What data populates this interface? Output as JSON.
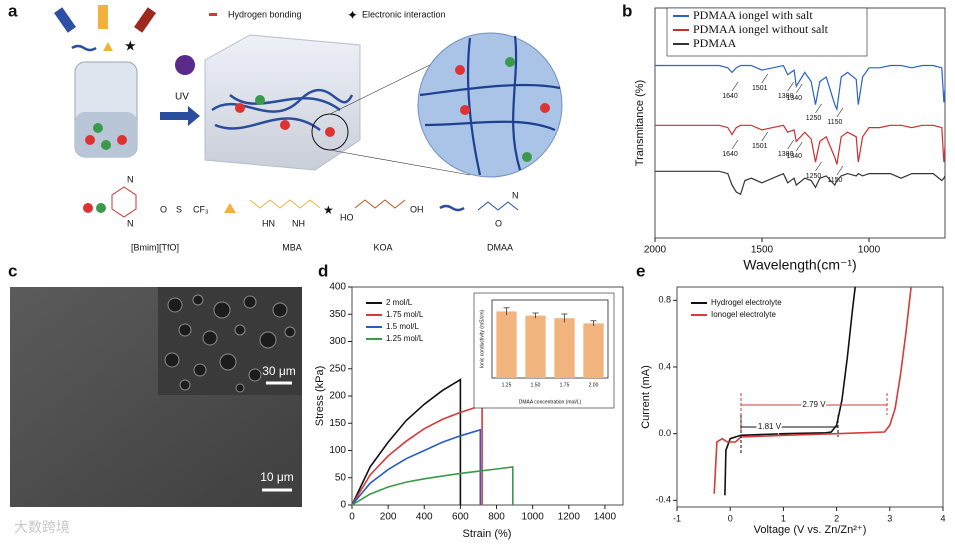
{
  "panel_labels": [
    "a",
    "b",
    "c",
    "d",
    "e"
  ],
  "diagram": {
    "legend": [
      "Hydrogen bonding",
      "Electronic interaction"
    ],
    "uv": "UV",
    "molecules": [
      "[Bmim][TfO]",
      "MBA",
      "KOA",
      "DMAA"
    ],
    "structure_labels": [
      "N",
      "N",
      "CF₃",
      "S",
      "O",
      "HN",
      "NH",
      "HO",
      "OH",
      "O",
      "N"
    ]
  },
  "sem": {
    "scale_bars": [
      "10 μm",
      "30 μm"
    ]
  },
  "watermark": "大数跨境",
  "chart_data": [
    {
      "type": "line",
      "xlabel": "Wavelength(cm⁻¹)",
      "ylabel": "Transmitance (%)",
      "xlim": [
        2000,
        645
      ],
      "ylim": [
        0,
        10
      ],
      "xticks": [
        2000,
        1500,
        1000
      ],
      "legend": "upper left",
      "x": [
        2000,
        1900,
        1800,
        1700,
        1660,
        1640,
        1620,
        1600,
        1580,
        1550,
        1501,
        1450,
        1400,
        1380,
        1350,
        1340,
        1300,
        1270,
        1250,
        1230,
        1200,
        1160,
        1150,
        1130,
        1100,
        1060,
        1050,
        1030,
        1000,
        950,
        900,
        850,
        800,
        750,
        700,
        660,
        650,
        645
      ],
      "series": [
        {
          "name": "PDMAA iongel with salt",
          "color": "#2a62cf",
          "values": [
            7.5,
            7.5,
            7.5,
            7.5,
            7.4,
            7.2,
            7.4,
            7.5,
            7.5,
            7.5,
            7.3,
            7.4,
            7.5,
            7.1,
            7.3,
            6.6,
            7.2,
            6.8,
            5.8,
            6.8,
            7.0,
            5.8,
            5.6,
            7.0,
            7.2,
            6.9,
            5.8,
            7.0,
            7.4,
            7.4,
            7.5,
            7.5,
            7.4,
            7.5,
            7.5,
            7.4,
            5.9,
            6.5
          ],
          "peak_labels": [
            1640,
            1501,
            1380,
            1340,
            1250,
            1150
          ]
        },
        {
          "name": "PDMAA iongel without salt",
          "color": "#d02d2d",
          "values": [
            4.9,
            4.9,
            4.9,
            4.9,
            4.8,
            4.5,
            4.8,
            4.9,
            4.9,
            4.9,
            4.7,
            4.8,
            4.9,
            4.6,
            4.7,
            4.2,
            4.6,
            4.3,
            3.3,
            4.2,
            4.4,
            3.5,
            3.2,
            4.4,
            4.6,
            4.4,
            3.3,
            4.4,
            4.8,
            4.8,
            4.9,
            4.9,
            4.8,
            4.9,
            4.9,
            4.8,
            3.3,
            4.0
          ],
          "peak_labels": [
            1640,
            1501,
            1380,
            1340,
            1250,
            1150
          ]
        },
        {
          "name": "PDMAA",
          "color": "#333333",
          "values": [
            2.9,
            2.9,
            2.9,
            2.9,
            2.8,
            2.3,
            2.0,
            1.9,
            2.5,
            2.6,
            2.4,
            2.6,
            2.8,
            2.4,
            2.6,
            2.3,
            2.6,
            2.5,
            2.2,
            2.6,
            2.7,
            2.3,
            2.5,
            2.7,
            2.8,
            2.7,
            2.8,
            2.7,
            2.8,
            2.8,
            2.8,
            2.6,
            2.8,
            2.8,
            2.8,
            2.5,
            2.6,
            2.7
          ]
        }
      ]
    },
    {
      "type": "line",
      "xlabel": "Strain (%)",
      "ylabel": "Stress (kPa)",
      "xlim": [
        0,
        1500
      ],
      "ylim": [
        0,
        400
      ],
      "xticks": [
        0,
        200,
        400,
        600,
        800,
        1000,
        1200,
        1400
      ],
      "yticks": [
        0,
        50,
        100,
        150,
        200,
        250,
        300,
        350,
        400
      ],
      "legend": "upper left",
      "series": [
        {
          "name": "2 mol/L",
          "color": "#111111",
          "x": [
            0,
            100,
            200,
            300,
            400,
            500,
            600,
            600
          ],
          "values": [
            0,
            70,
            115,
            155,
            185,
            210,
            230,
            0
          ]
        },
        {
          "name": "1.75 mol/L",
          "color": "#d63a3a",
          "x": [
            0,
            100,
            200,
            300,
            400,
            500,
            600,
            720,
            720
          ],
          "values": [
            0,
            55,
            90,
            117,
            140,
            157,
            170,
            183,
            0
          ]
        },
        {
          "name": "1.5 mol/L",
          "color": "#2a5bc8",
          "x": [
            0,
            100,
            200,
            300,
            400,
            500,
            600,
            710,
            710
          ],
          "values": [
            0,
            40,
            65,
            85,
            100,
            115,
            127,
            138,
            0
          ]
        },
        {
          "name": "1.25 mol/L",
          "color": "#3a9a4a",
          "x": [
            0,
            100,
            200,
            300,
            400,
            500,
            600,
            700,
            800,
            890,
            890
          ],
          "values": [
            0,
            20,
            33,
            42,
            48,
            53,
            58,
            62,
            66,
            70,
            0
          ]
        }
      ]
    },
    {
      "type": "bar",
      "xlabel": "DMAA concentration (mol/L)",
      "ylabel": "Ionic conductivity (mS/cm)",
      "categories": [
        "1.25",
        "1.50",
        "1.75",
        "2.00"
      ],
      "values": [
        1.28,
        1.2,
        1.15,
        1.05
      ],
      "errors": [
        0.07,
        0.05,
        0.08,
        0.05
      ],
      "color": "#f2b47e",
      "ylim": [
        0,
        1.5
      ]
    },
    {
      "type": "line",
      "xlabel": "Voltage (V vs. Zn/Zn²⁺)",
      "ylabel": "Current (mA)",
      "xlim": [
        -1,
        4
      ],
      "ylim": [
        -0.44,
        0.88
      ],
      "xticks": [
        -1,
        0,
        1,
        2,
        3,
        4
      ],
      "yticks": [
        -0.4,
        {
          "value": 0,
          "label": "0.0"
        },
        0.4,
        0.8
      ],
      "legend": "upper left",
      "annotations": [
        "2.79 V",
        "1.81 V"
      ],
      "series": [
        {
          "name": "Hydrogel electrolyte",
          "color": "#111111",
          "x": [
            -0.1,
            -0.08,
            0,
            0.2,
            1,
            1.8,
            1.9,
            2.0,
            2.1,
            2.2,
            2.3,
            2.35
          ],
          "values": [
            -0.37,
            -0.1,
            -0.03,
            -0.01,
            0,
            0.005,
            0.01,
            0.05,
            0.2,
            0.45,
            0.75,
            0.88
          ]
        },
        {
          "name": "Ionogel electrolyte",
          "color": "#d63a3a",
          "x": [
            -0.3,
            -0.25,
            -0.15,
            -0.05,
            0.1,
            0.2,
            1,
            2,
            2.9,
            3.0,
            3.1,
            3.2,
            3.3,
            3.4
          ],
          "values": [
            -0.36,
            -0.05,
            -0.03,
            -0.05,
            -0.05,
            -0.02,
            -0.01,
            0,
            0.01,
            0.05,
            0.15,
            0.35,
            0.6,
            0.88
          ]
        }
      ]
    }
  ]
}
